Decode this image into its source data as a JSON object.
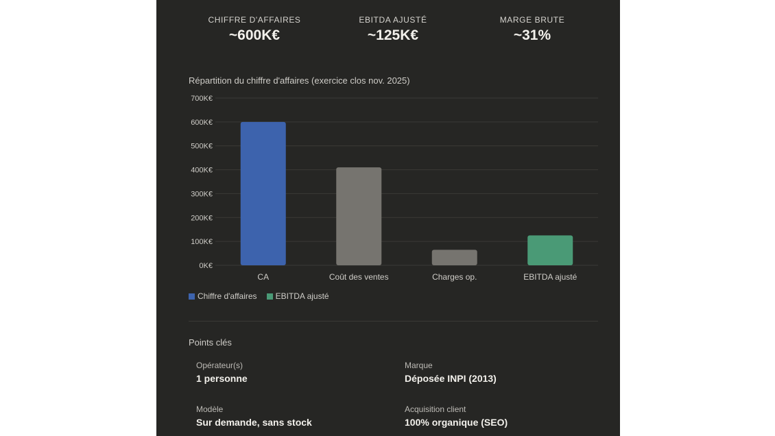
{
  "metrics": [
    {
      "label": "CHIFFRE D'AFFAIRES",
      "value": "~600K€"
    },
    {
      "label": "EBITDA AJUSTÉ",
      "value": "~125K€"
    },
    {
      "label": "MARGE BRUTE",
      "value": "~31%"
    }
  ],
  "chart_title": "Répartition du chiffre d'affaires (exercice clos nov. 2025)",
  "chart_data": {
    "type": "bar",
    "title": "Répartition du chiffre d'affaires (exercice clos nov. 2025)",
    "categories": [
      "CA",
      "Coût des ventes",
      "Charges op.",
      "EBITDA ajusté"
    ],
    "values": [
      600,
      410,
      65,
      125
    ],
    "unit": "K€",
    "y_ticks": [
      "0K€",
      "100K€",
      "200K€",
      "300K€",
      "400K€",
      "500K€",
      "600K€",
      "700K€"
    ],
    "ylim": [
      0,
      700
    ],
    "bar_colors": [
      "#3d63ad",
      "#76746f",
      "#76746f",
      "#4a9a76"
    ],
    "grid": true,
    "legend": [
      {
        "name": "Chiffre d'affaires",
        "color": "#3d63ad"
      },
      {
        "name": "EBITDA ajusté",
        "color": "#4a9a76"
      }
    ],
    "legend_position": "bottom-left"
  },
  "key_points": {
    "title": "Points clés",
    "items": [
      {
        "label": "Opérateur(s)",
        "value": "1 personne"
      },
      {
        "label": "Marque",
        "value": "Déposée INPI (2013)"
      },
      {
        "label": "Modèle",
        "value": "Sur demande, sans stock"
      },
      {
        "label": "Acquisition client",
        "value": "100% organique (SEO)"
      }
    ]
  },
  "colors": {
    "panel_background": "#262624",
    "grid_line": "#3b3a37",
    "text_light": "#f3f1ec"
  }
}
